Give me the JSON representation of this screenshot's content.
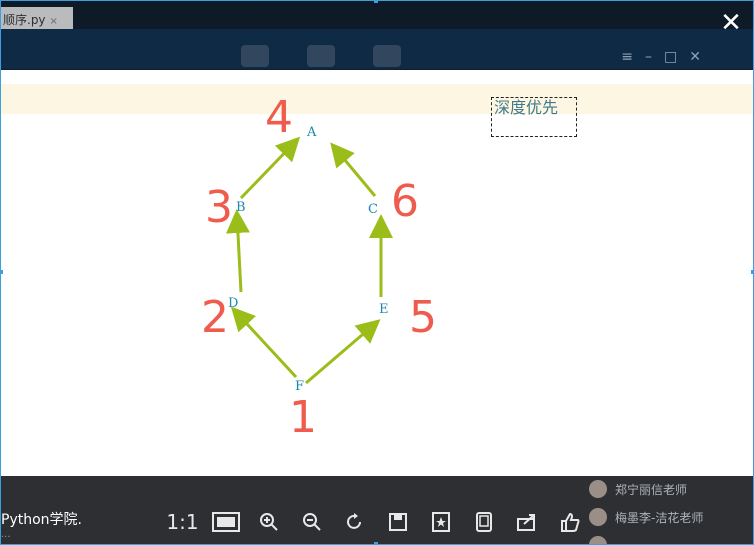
{
  "background": {
    "tab_label": "顺序.py",
    "tab_close": "×",
    "left_text": "Python学院.",
    "left_sub": "...",
    "right_list": [
      "郑宁丽信老师",
      "梅墨李-洁花老师",
      "..."
    ]
  },
  "viewer": {
    "close_symbol": "✕",
    "annotation": "深度优先",
    "nodes": {
      "A": "A",
      "B": "B",
      "C": "C",
      "D": "D",
      "E": "E",
      "F": "F"
    },
    "order_numbers": {
      "F": "1",
      "D": "2",
      "B": "3",
      "A": "4",
      "E": "5",
      "C": "6"
    },
    "colors": {
      "edge": "#9bbd1a",
      "node": "#1b8aa6",
      "order": "#ef5b4d",
      "strip": "#fdf6e3"
    }
  },
  "toolbar": {
    "actual_size": "1:1",
    "fit_window_icon": "fit-window-icon",
    "zoom_in_icon": "zoom-in-icon",
    "zoom_out_icon": "zoom-out-icon",
    "rotate_icon": "rotate-icon",
    "save_icon": "save-icon",
    "favorite_icon": "favorite-star-icon",
    "device_icon": "phone-icon",
    "share_icon": "share-icon",
    "like_icon": "thumbs-up-icon"
  }
}
